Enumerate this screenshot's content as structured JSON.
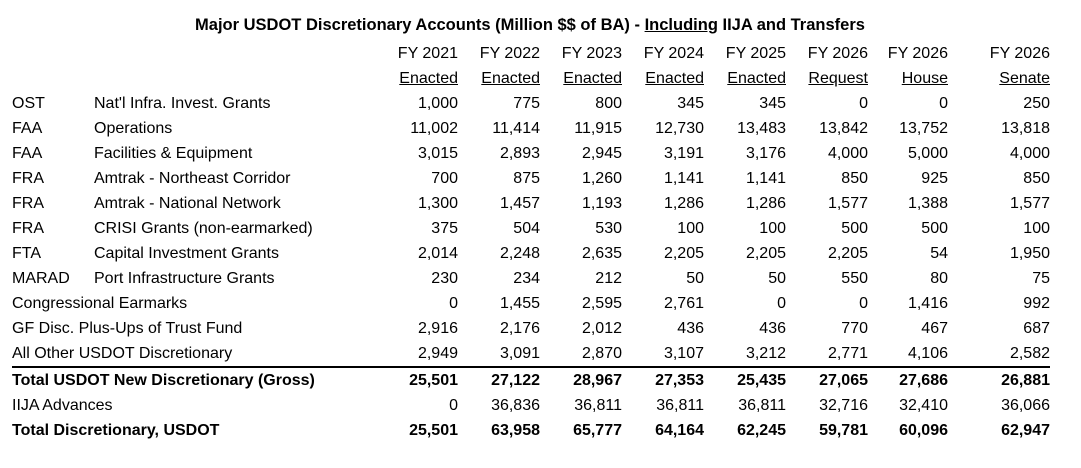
{
  "title": {
    "pre": "Major USDOT Discretionary Accounts (Million $$ of BA) - ",
    "underlined": "Including",
    "post": " IIJA and Transfers"
  },
  "columns": [
    {
      "year": "FY 2021",
      "status": "Enacted"
    },
    {
      "year": "FY 2022",
      "status": "Enacted"
    },
    {
      "year": "FY 2023",
      "status": "Enacted"
    },
    {
      "year": "FY 2024",
      "status": "Enacted"
    },
    {
      "year": "FY 2025",
      "status": "Enacted"
    },
    {
      "year": "FY 2026",
      "status": "Request"
    },
    {
      "year": "FY 2026",
      "status": "House"
    },
    {
      "year": "FY 2026",
      "status": "Senate"
    }
  ],
  "rows": [
    {
      "agency": "OST",
      "label": "Nat'l Infra. Invest. Grants",
      "values": [
        "1,000",
        "775",
        "800",
        "345",
        "345",
        "0",
        "0",
        "250"
      ]
    },
    {
      "agency": "FAA",
      "label": "Operations",
      "values": [
        "11,002",
        "11,414",
        "11,915",
        "12,730",
        "13,483",
        "13,842",
        "13,752",
        "13,818"
      ]
    },
    {
      "agency": "FAA",
      "label": "Facilities & Equipment",
      "values": [
        "3,015",
        "2,893",
        "2,945",
        "3,191",
        "3,176",
        "4,000",
        "5,000",
        "4,000"
      ]
    },
    {
      "agency": "FRA",
      "label": "Amtrak - Northeast Corridor",
      "values": [
        "700",
        "875",
        "1,260",
        "1,141",
        "1,141",
        "850",
        "925",
        "850"
      ]
    },
    {
      "agency": "FRA",
      "label": "Amtrak - National Network",
      "values": [
        "1,300",
        "1,457",
        "1,193",
        "1,286",
        "1,286",
        "1,577",
        "1,388",
        "1,577"
      ]
    },
    {
      "agency": "FRA",
      "label": "CRISI Grants (non-earmarked)",
      "values": [
        "375",
        "504",
        "530",
        "100",
        "100",
        "500",
        "500",
        "100"
      ]
    },
    {
      "agency": "FTA",
      "label": "Capital Investment Grants",
      "values": [
        "2,014",
        "2,248",
        "2,635",
        "2,205",
        "2,205",
        "2,205",
        "54",
        "1,950"
      ]
    },
    {
      "agency": "MARAD",
      "label": "Port Infrastructure Grants",
      "values": [
        "230",
        "234",
        "212",
        "50",
        "50",
        "550",
        "80",
        "75"
      ]
    },
    {
      "agency": "",
      "label": "Congressional Earmarks",
      "values": [
        "0",
        "1,455",
        "2,595",
        "2,761",
        "0",
        "0",
        "1,416",
        "992"
      ]
    },
    {
      "agency": "",
      "label": "GF Disc. Plus-Ups of Trust Fund",
      "values": [
        "2,916",
        "2,176",
        "2,012",
        "436",
        "436",
        "770",
        "467",
        "687"
      ]
    },
    {
      "agency": "",
      "label": "All Other USDOT Discretionary",
      "values": [
        "2,949",
        "3,091",
        "2,870",
        "3,107",
        "3,212",
        "2,771",
        "4,106",
        "2,582"
      ]
    },
    {
      "agency": "",
      "label": "Total USDOT New Discretionary (Gross)",
      "values": [
        "25,501",
        "27,122",
        "28,967",
        "27,353",
        "25,435",
        "27,065",
        "27,686",
        "26,881"
      ],
      "bold": true,
      "topline": true
    },
    {
      "agency": "",
      "label": "IIJA Advances",
      "values": [
        "0",
        "36,836",
        "36,811",
        "36,811",
        "36,811",
        "32,716",
        "32,410",
        "36,066"
      ]
    },
    {
      "agency": "",
      "label": "Total Discretionary, USDOT",
      "values": [
        "25,501",
        "63,958",
        "65,777",
        "64,164",
        "62,245",
        "59,781",
        "60,096",
        "62,947"
      ],
      "bold": true
    }
  ]
}
